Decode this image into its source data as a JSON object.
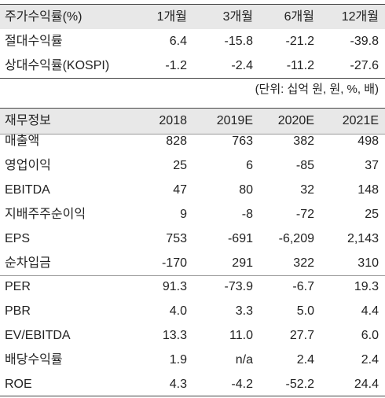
{
  "returns": {
    "header": [
      "주가수익률(%)",
      "1개월",
      "3개월",
      "6개월",
      "12개월"
    ],
    "rows": [
      [
        "절대수익률",
        "6.4",
        "-15.8",
        "-21.2",
        "-39.8"
      ],
      [
        "상대수익률(KOSPI)",
        "-1.2",
        "-2.4",
        "-11.2",
        "-27.6"
      ]
    ]
  },
  "unit_note": "(단위: 십억 원, 원, %, 배)",
  "financials": {
    "header": [
      "재무정보",
      "2018",
      "2019E",
      "2020E",
      "2021E"
    ],
    "group1": [
      [
        "매출액",
        "828",
        "763",
        "382",
        "498"
      ],
      [
        "영업이익",
        "25",
        "6",
        "-85",
        "37"
      ],
      [
        "EBITDA",
        "47",
        "80",
        "32",
        "148"
      ],
      [
        "지배주주순이익",
        "9",
        "-8",
        "-72",
        "25"
      ],
      [
        "EPS",
        "753",
        "-691",
        "-6,209",
        "2,143"
      ],
      [
        "순차입금",
        "-170",
        "291",
        "322",
        "310"
      ]
    ],
    "group2": [
      [
        "PER",
        "91.3",
        "-73.9",
        "-6.7",
        "19.3"
      ],
      [
        "PBR",
        "4.0",
        "3.3",
        "5.0",
        "4.4"
      ],
      [
        "EV/EBITDA",
        "13.3",
        "11.0",
        "27.7",
        "6.0"
      ],
      [
        "배당수익률",
        "1.9",
        "n/a",
        "2.4",
        "2.4"
      ],
      [
        "ROE",
        "4.3",
        "-4.2",
        "-52.2",
        "24.4"
      ]
    ]
  }
}
